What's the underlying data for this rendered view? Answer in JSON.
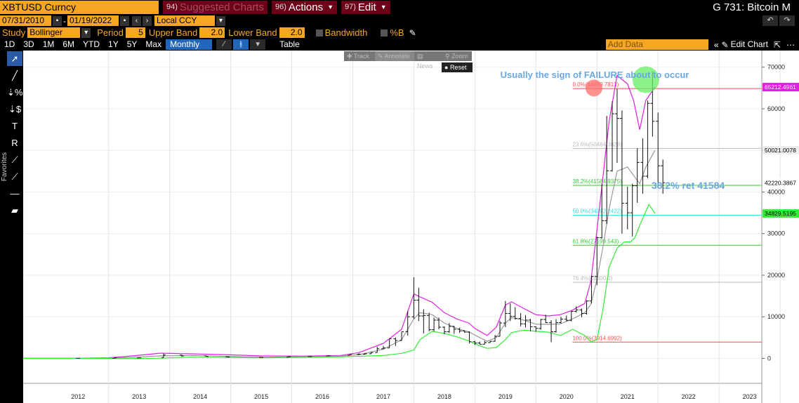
{
  "header": {
    "ticker": "XBTUSD Curncy",
    "suggested_num": "94)",
    "suggested_label": "Suggested Charts",
    "actions_num": "96)",
    "actions_label": "Actions",
    "edit_num": "97)",
    "edit_label": "Edit",
    "page_title": "G 731: Bitcoin M"
  },
  "dates": {
    "start": "07/31/2010",
    "end": "01/19/2022",
    "currency": "Local CCY"
  },
  "study": {
    "label": "Study",
    "value": "Bollinger",
    "period_label": "Period",
    "period": "5",
    "upper_label": "Upper Band",
    "upper": "2.0",
    "lower_label": "Lower Band",
    "lower": "2.0",
    "bandwidth_label": "Bandwidth",
    "pctb_label": "%B"
  },
  "ranges": [
    "1D",
    "3D",
    "1M",
    "6M",
    "YTD",
    "1Y",
    "5Y",
    "Max"
  ],
  "frequency": "Monthly ▼",
  "table_label": "Table",
  "add_data_placeholder": "Add Data",
  "edit_chart_label": "Edit Chart",
  "overlay": {
    "track": "Track",
    "annotate": "Annotate",
    "news": "News",
    "zoom": "Zoom",
    "reset": "Reset"
  },
  "favorites_label": "Favorites",
  "colors": {
    "accent": "#f5a623",
    "maroon": "#6d0016",
    "upper_band": "#e020e0",
    "lower_band": "#33ee33",
    "mid_band": "#999999",
    "annotation": "#6aa8e0"
  },
  "chart_data": {
    "type": "line",
    "y_ticks": [
      0,
      10000,
      20000,
      30000,
      40000,
      50000,
      60000,
      70000
    ],
    "ylim": [
      -6000,
      74000
    ],
    "x_labels": [
      "2012",
      "2013",
      "2014",
      "2015",
      "2016",
      "2017",
      "2018",
      "2019",
      "2020",
      "2021",
      "2022",
      "2023"
    ],
    "xlim": [
      2011.6,
      2023.7
    ],
    "annotations": [
      {
        "text": "Usually the sign of FAILURE about to occur"
      },
      {
        "text": "38.2% ret 41584"
      }
    ],
    "fib_levels": [
      {
        "label": "0.0%(64869.7813)",
        "value": 64869.7813,
        "color": "#ff4d4d"
      },
      {
        "label": "23.6%(50484.3828)",
        "value": 50484.3828,
        "color": "#bbbbbb"
      },
      {
        "label": "38.2%(41584.9375)",
        "value": 41584.9375,
        "color": "#33cc33"
      },
      {
        "label": "50.0%(34392.2422)",
        "value": 34392.2422,
        "color": "#33dddd"
      },
      {
        "label": "61.8%(27199.543)",
        "value": 27199.543,
        "color": "#33cc33"
      },
      {
        "label": "76.4%(18300.0)",
        "value": 18300.0,
        "color": "#bbbbbb"
      },
      {
        "label": "100.0%(3914.6992)",
        "value": 3914.6992,
        "color": "#ff4d4d"
      }
    ],
    "price_tags": [
      {
        "label": "65212.4961",
        "value": 65212.4961,
        "bg": "#e020e0",
        "fg": "#ffffff"
      },
      {
        "label": "50021.0078",
        "value": 50021.0078,
        "bg": "#eeeeee",
        "fg": "#000000"
      },
      {
        "label": "42220.3867",
        "value": 42220.3867,
        "bg": "#ffffff",
        "fg": "#000000"
      },
      {
        "label": "34829.5195",
        "value": 34829.5195,
        "bg": "#33ee33",
        "fg": "#000000"
      }
    ],
    "circles": [
      {
        "x": 2020.95,
        "y": 65000,
        "color": "#ff6b6b"
      },
      {
        "x": 2021.8,
        "y": 67000,
        "color": "#66ee66"
      }
    ],
    "ohlc": [
      {
        "x": 2012.5,
        "o": 5,
        "h": 15,
        "l": 4,
        "c": 9
      },
      {
        "x": 2013.1,
        "o": 20,
        "h": 260,
        "l": 20,
        "c": 140
      },
      {
        "x": 2013.5,
        "o": 100,
        "h": 140,
        "l": 65,
        "c": 110
      },
      {
        "x": 2013.9,
        "o": 200,
        "h": 1150,
        "l": 200,
        "c": 800
      },
      {
        "x": 2014.2,
        "o": 800,
        "h": 900,
        "l": 400,
        "c": 600
      },
      {
        "x": 2014.6,
        "o": 600,
        "h": 650,
        "l": 400,
        "c": 450
      },
      {
        "x": 2014.95,
        "o": 400,
        "h": 450,
        "l": 280,
        "c": 320
      },
      {
        "x": 2015.5,
        "o": 280,
        "h": 300,
        "l": 200,
        "c": 240
      },
      {
        "x": 2015.95,
        "o": 300,
        "h": 500,
        "l": 300,
        "c": 430
      },
      {
        "x": 2016.3,
        "o": 420,
        "h": 450,
        "l": 370,
        "c": 440
      },
      {
        "x": 2016.6,
        "o": 600,
        "h": 780,
        "l": 550,
        "c": 650
      },
      {
        "x": 2016.95,
        "o": 750,
        "h": 980,
        "l": 700,
        "c": 960
      },
      {
        "x": 2017.1,
        "o": 960,
        "h": 1200,
        "l": 800,
        "c": 1000
      },
      {
        "x": 2017.2,
        "o": 1000,
        "h": 1300,
        "l": 900,
        "c": 1100
      },
      {
        "x": 2017.3,
        "o": 1100,
        "h": 1500,
        "l": 1050,
        "c": 1400
      },
      {
        "x": 2017.4,
        "o": 1400,
        "h": 2800,
        "l": 1400,
        "c": 2300
      },
      {
        "x": 2017.5,
        "o": 2300,
        "h": 3000,
        "l": 2200,
        "c": 2500
      },
      {
        "x": 2017.6,
        "o": 2500,
        "h": 4600,
        "l": 2500,
        "c": 4700
      },
      {
        "x": 2017.7,
        "o": 4700,
        "h": 5000,
        "l": 3000,
        "c": 4300
      },
      {
        "x": 2017.8,
        "o": 4300,
        "h": 6400,
        "l": 4200,
        "c": 6400
      },
      {
        "x": 2017.9,
        "o": 6400,
        "h": 11400,
        "l": 5500,
        "c": 10000
      },
      {
        "x": 2018.0,
        "o": 10000,
        "h": 19500,
        "l": 9500,
        "c": 14000
      },
      {
        "x": 2018.08,
        "o": 14000,
        "h": 17000,
        "l": 9000,
        "c": 10200
      },
      {
        "x": 2018.16,
        "o": 10200,
        "h": 11800,
        "l": 6000,
        "c": 10300
      },
      {
        "x": 2018.25,
        "o": 10300,
        "h": 11000,
        "l": 6500,
        "c": 6900
      },
      {
        "x": 2018.33,
        "o": 6900,
        "h": 9800,
        "l": 6500,
        "c": 9200
      },
      {
        "x": 2018.41,
        "o": 9200,
        "h": 9800,
        "l": 7000,
        "c": 7500
      },
      {
        "x": 2018.5,
        "o": 7500,
        "h": 7700,
        "l": 5800,
        "c": 6400
      },
      {
        "x": 2018.58,
        "o": 6400,
        "h": 8500,
        "l": 6100,
        "c": 7700
      },
      {
        "x": 2018.66,
        "o": 7700,
        "h": 7800,
        "l": 5900,
        "c": 7000
      },
      {
        "x": 2018.75,
        "o": 7000,
        "h": 7400,
        "l": 6100,
        "c": 6600
      },
      {
        "x": 2018.83,
        "o": 6600,
        "h": 6700,
        "l": 6200,
        "c": 6300
      },
      {
        "x": 2018.91,
        "o": 6300,
        "h": 6500,
        "l": 3600,
        "c": 4000
      },
      {
        "x": 2019.0,
        "o": 4000,
        "h": 4200,
        "l": 3200,
        "c": 3700
      },
      {
        "x": 2019.08,
        "o": 3700,
        "h": 4000,
        "l": 3400,
        "c": 3400
      },
      {
        "x": 2019.16,
        "o": 3400,
        "h": 4200,
        "l": 3400,
        "c": 3800
      },
      {
        "x": 2019.25,
        "o": 3800,
        "h": 4200,
        "l": 3700,
        "c": 4100
      },
      {
        "x": 2019.33,
        "o": 4100,
        "h": 5600,
        "l": 4000,
        "c": 5300
      },
      {
        "x": 2019.41,
        "o": 5300,
        "h": 9000,
        "l": 5300,
        "c": 8500
      },
      {
        "x": 2019.5,
        "o": 8500,
        "h": 13800,
        "l": 7500,
        "c": 10800
      },
      {
        "x": 2019.58,
        "o": 10800,
        "h": 13200,
        "l": 9000,
        "c": 10100
      },
      {
        "x": 2019.66,
        "o": 10100,
        "h": 12300,
        "l": 9300,
        "c": 9600
      },
      {
        "x": 2019.75,
        "o": 9600,
        "h": 10900,
        "l": 7700,
        "c": 8300
      },
      {
        "x": 2019.83,
        "o": 8300,
        "h": 10400,
        "l": 7400,
        "c": 9200
      },
      {
        "x": 2019.91,
        "o": 9200,
        "h": 9500,
        "l": 6500,
        "c": 7600
      },
      {
        "x": 2020.0,
        "o": 7600,
        "h": 7700,
        "l": 6400,
        "c": 7200
      },
      {
        "x": 2020.08,
        "o": 7200,
        "h": 9500,
        "l": 6900,
        "c": 9350
      },
      {
        "x": 2020.16,
        "o": 9350,
        "h": 10500,
        "l": 8500,
        "c": 8600
      },
      {
        "x": 2020.25,
        "o": 8600,
        "h": 9200,
        "l": 3900,
        "c": 6400
      },
      {
        "x": 2020.33,
        "o": 6400,
        "h": 9400,
        "l": 6200,
        "c": 8600
      },
      {
        "x": 2020.41,
        "o": 8600,
        "h": 10000,
        "l": 8400,
        "c": 9450
      },
      {
        "x": 2020.5,
        "o": 9450,
        "h": 10300,
        "l": 8900,
        "c": 9150
      },
      {
        "x": 2020.58,
        "o": 9150,
        "h": 11400,
        "l": 8900,
        "c": 11300
      },
      {
        "x": 2020.66,
        "o": 11300,
        "h": 12500,
        "l": 11000,
        "c": 11650
      },
      {
        "x": 2020.75,
        "o": 11650,
        "h": 12000,
        "l": 9900,
        "c": 10800
      },
      {
        "x": 2020.83,
        "o": 10800,
        "h": 14000,
        "l": 10500,
        "c": 13800
      },
      {
        "x": 2020.91,
        "o": 13800,
        "h": 19900,
        "l": 13200,
        "c": 19700
      },
      {
        "x": 2021.0,
        "o": 19700,
        "h": 29300,
        "l": 17600,
        "c": 29000
      },
      {
        "x": 2021.08,
        "o": 29000,
        "h": 41900,
        "l": 28800,
        "c": 33100
      },
      {
        "x": 2021.16,
        "o": 33100,
        "h": 58300,
        "l": 32300,
        "c": 45100
      },
      {
        "x": 2021.25,
        "o": 45100,
        "h": 61800,
        "l": 44900,
        "c": 58800
      },
      {
        "x": 2021.33,
        "o": 58800,
        "h": 64800,
        "l": 47000,
        "c": 57700
      },
      {
        "x": 2021.41,
        "o": 57700,
        "h": 59600,
        "l": 30000,
        "c": 37300
      },
      {
        "x": 2021.5,
        "o": 37300,
        "h": 41300,
        "l": 31000,
        "c": 35000
      },
      {
        "x": 2021.58,
        "o": 35000,
        "h": 42000,
        "l": 29300,
        "c": 41500
      },
      {
        "x": 2021.66,
        "o": 41500,
        "h": 50500,
        "l": 37400,
        "c": 47100
      },
      {
        "x": 2021.75,
        "o": 47100,
        "h": 52900,
        "l": 39600,
        "c": 43800
      },
      {
        "x": 2021.83,
        "o": 43800,
        "h": 62000,
        "l": 43300,
        "c": 61300
      },
      {
        "x": 2021.91,
        "o": 61300,
        "h": 69000,
        "l": 53300,
        "c": 57000
      },
      {
        "x": 2022.0,
        "o": 57000,
        "h": 59100,
        "l": 42000,
        "c": 46300
      },
      {
        "x": 2022.08,
        "o": 46300,
        "h": 47800,
        "l": 39600,
        "c": 42220
      }
    ],
    "series": [
      {
        "name": "Upper Band",
        "color": "#e020e0",
        "points": [
          [
            2011.6,
            0
          ],
          [
            2012.4,
            30
          ],
          [
            2013.0,
            150
          ],
          [
            2013.4,
            600
          ],
          [
            2013.85,
            1250
          ],
          [
            2014.3,
            1100
          ],
          [
            2014.9,
            900
          ],
          [
            2015.5,
            600
          ],
          [
            2016.2,
            550
          ],
          [
            2016.8,
            700
          ],
          [
            2017.1,
            1400
          ],
          [
            2017.5,
            3600
          ],
          [
            2017.8,
            7000
          ],
          [
            2018.0,
            15500
          ],
          [
            2018.1,
            14800
          ],
          [
            2018.3,
            13500
          ],
          [
            2018.5,
            11000
          ],
          [
            2018.7,
            9500
          ],
          [
            2018.9,
            8500
          ],
          [
            2019.0,
            7200
          ],
          [
            2019.2,
            5500
          ],
          [
            2019.35,
            7500
          ],
          [
            2019.5,
            12800
          ],
          [
            2019.6,
            13600
          ],
          [
            2019.8,
            12000
          ],
          [
            2020.0,
            10500
          ],
          [
            2020.2,
            10200
          ],
          [
            2020.4,
            10500
          ],
          [
            2020.6,
            11600
          ],
          [
            2020.8,
            13200
          ],
          [
            2020.9,
            18500
          ],
          [
            2021.0,
            31000
          ],
          [
            2021.1,
            44000
          ],
          [
            2021.2,
            57000
          ],
          [
            2021.33,
            68000
          ],
          [
            2021.5,
            66000
          ],
          [
            2021.6,
            62000
          ],
          [
            2021.7,
            55000
          ],
          [
            2021.8,
            62000
          ],
          [
            2021.95,
            65212
          ]
        ]
      },
      {
        "name": "Middle Band",
        "color": "#999999",
        "points": [
          [
            2011.6,
            0
          ],
          [
            2012.4,
            10
          ],
          [
            2013.0,
            60
          ],
          [
            2013.4,
            250
          ],
          [
            2013.85,
            600
          ],
          [
            2014.3,
            700
          ],
          [
            2014.9,
            500
          ],
          [
            2015.5,
            300
          ],
          [
            2016.2,
            400
          ],
          [
            2016.8,
            550
          ],
          [
            2017.1,
            900
          ],
          [
            2017.5,
            2200
          ],
          [
            2017.8,
            4500
          ],
          [
            2018.0,
            9500
          ],
          [
            2018.1,
            11000
          ],
          [
            2018.3,
            10500
          ],
          [
            2018.5,
            8500
          ],
          [
            2018.7,
            7200
          ],
          [
            2018.9,
            6400
          ],
          [
            2019.0,
            5600
          ],
          [
            2019.2,
            4100
          ],
          [
            2019.35,
            5000
          ],
          [
            2019.5,
            8500
          ],
          [
            2019.6,
            9800
          ],
          [
            2019.8,
            9200
          ],
          [
            2020.0,
            8200
          ],
          [
            2020.2,
            8200
          ],
          [
            2020.4,
            8300
          ],
          [
            2020.6,
            9500
          ],
          [
            2020.8,
            11000
          ],
          [
            2020.9,
            13000
          ],
          [
            2021.0,
            19000
          ],
          [
            2021.1,
            27000
          ],
          [
            2021.2,
            36000
          ],
          [
            2021.33,
            45000
          ],
          [
            2021.5,
            46000
          ],
          [
            2021.6,
            44000
          ],
          [
            2021.7,
            42000
          ],
          [
            2021.8,
            46000
          ],
          [
            2021.95,
            50021
          ]
        ]
      },
      {
        "name": "Lower Band",
        "color": "#33ee33",
        "points": [
          [
            2011.6,
            0
          ],
          [
            2012.4,
            0
          ],
          [
            2013.0,
            10
          ],
          [
            2013.4,
            -50
          ],
          [
            2013.85,
            50
          ],
          [
            2014.3,
            300
          ],
          [
            2014.9,
            250
          ],
          [
            2015.5,
            150
          ],
          [
            2016.2,
            250
          ],
          [
            2016.8,
            400
          ],
          [
            2017.1,
            500
          ],
          [
            2017.5,
            700
          ],
          [
            2017.8,
            1200
          ],
          [
            2018.0,
            2000
          ],
          [
            2018.1,
            4500
          ],
          [
            2018.3,
            6500
          ],
          [
            2018.5,
            6000
          ],
          [
            2018.7,
            5200
          ],
          [
            2018.9,
            4200
          ],
          [
            2019.0,
            3500
          ],
          [
            2019.2,
            2400
          ],
          [
            2019.35,
            2600
          ],
          [
            2019.5,
            4500
          ],
          [
            2019.6,
            6200
          ],
          [
            2019.8,
            6800
          ],
          [
            2020.0,
            6500
          ],
          [
            2020.2,
            6300
          ],
          [
            2020.4,
            5500
          ],
          [
            2020.6,
            7000
          ],
          [
            2020.8,
            5500
          ],
          [
            2020.9,
            4000
          ],
          [
            2021.0,
            4500
          ],
          [
            2021.1,
            12000
          ],
          [
            2021.2,
            22000
          ],
          [
            2021.33,
            26500
          ],
          [
            2021.45,
            28000
          ],
          [
            2021.55,
            28000
          ],
          [
            2021.62,
            29000
          ],
          [
            2021.7,
            32000
          ],
          [
            2021.85,
            37000
          ],
          [
            2021.95,
            34830
          ]
        ]
      }
    ]
  }
}
